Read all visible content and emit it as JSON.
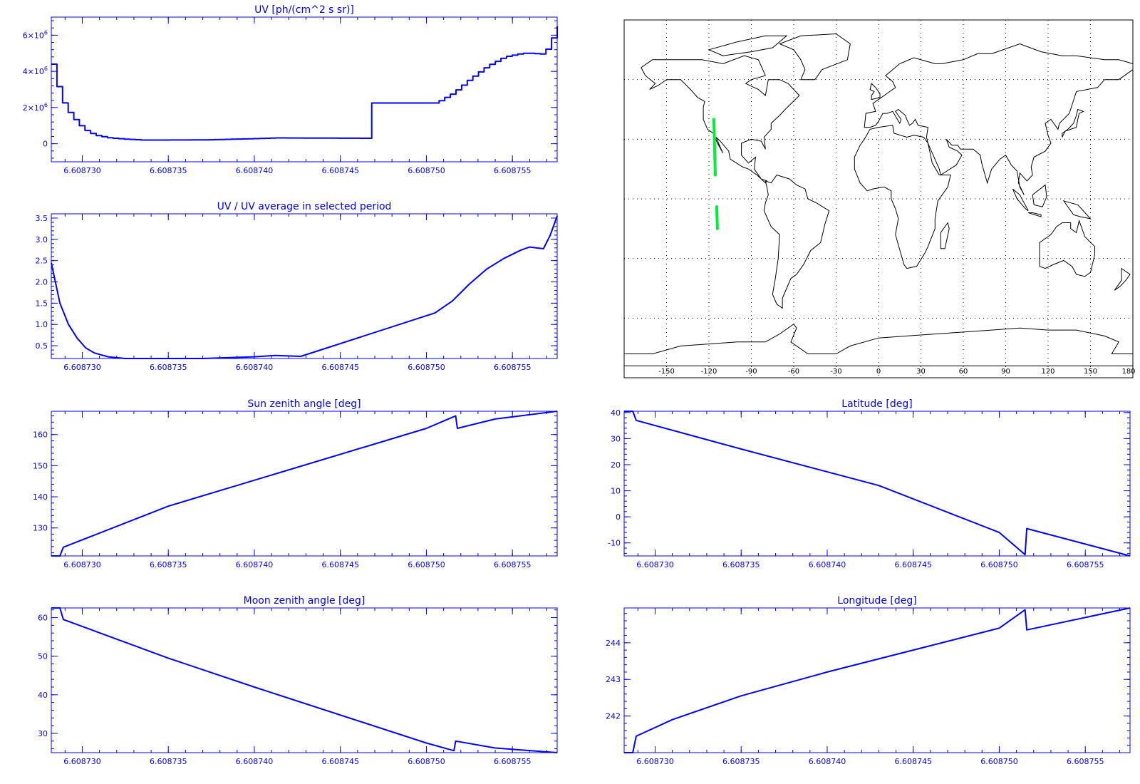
{
  "chart_data": [
    {
      "id": "uv",
      "type": "line",
      "title": "UV [ph/(cm^2 s sr)]",
      "xlim": [
        6.6087282,
        6.6087576
      ],
      "ylim": [
        -1000000,
        7000000
      ],
      "x_ticks": [
        6.60873,
        6.608735,
        6.60874,
        6.608745,
        6.60875,
        6.608755
      ],
      "x_tick_labels": [
        "6.608730",
        "6.608735",
        "6.608740",
        "6.608745",
        "6.608750",
        "6.608755"
      ],
      "y_ticks": [
        0,
        2000000,
        4000000,
        6000000
      ],
      "y_tick_labels": [
        "0",
        "2×10",
        "4×10",
        "6×10"
      ],
      "y_tick_exponent": "6",
      "step": true,
      "x": [
        6.6087282,
        6.6087287,
        6.6087292,
        6.6087297,
        6.6087302,
        6.6087307,
        6.6087315,
        6.6087325,
        6.6087335,
        6.608737,
        6.60874,
        6.6087412,
        6.6087465,
        6.6087465,
        6.6087505,
        6.6087515,
        6.6087525,
        6.6087535,
        6.6087545,
        6.6087555,
        6.608756,
        6.6087568,
        6.6087572,
        6.6087576
      ],
      "y": [
        4400000,
        2500000,
        1700000,
        1100000,
        700000,
        470000,
        320000,
        250000,
        200000,
        210000,
        280000,
        320000,
        300000,
        2250000,
        2250000,
        2800000,
        3600000,
        4300000,
        4800000,
        5000000,
        5000000,
        4950000,
        5700000,
        6500000
      ]
    },
    {
      "id": "uv-ratio",
      "type": "line",
      "title": "UV / UV average in selected period",
      "xlim": [
        6.6087282,
        6.6087576
      ],
      "ylim": [
        0.2,
        3.6
      ],
      "x_ticks": [
        6.60873,
        6.608735,
        6.60874,
        6.608745,
        6.60875,
        6.608755
      ],
      "x_tick_labels": [
        "6.608730",
        "6.608735",
        "6.608740",
        "6.608745",
        "6.608750",
        "6.608755"
      ],
      "y_ticks": [
        0.5,
        1.0,
        1.5,
        2.0,
        2.5,
        3.0,
        3.5
      ],
      "y_tick_labels": [
        "0.5",
        "1.0",
        "1.5",
        "2.0",
        "2.5",
        "3.0",
        "3.5"
      ],
      "x": [
        6.6087282,
        6.6087287,
        6.6087292,
        6.6087297,
        6.6087302,
        6.6087307,
        6.6087315,
        6.6087325,
        6.6087335,
        6.608737,
        6.60874,
        6.6087412,
        6.6087427,
        6.6087505,
        6.6087515,
        6.6087525,
        6.6087535,
        6.6087545,
        6.6087555,
        6.608756,
        6.6087568,
        6.6087572,
        6.6087576
      ],
      "y": [
        2.45,
        1.5,
        1.0,
        0.68,
        0.45,
        0.33,
        0.24,
        0.2,
        0.18,
        0.19,
        0.24,
        0.27,
        0.25,
        1.27,
        1.55,
        1.95,
        2.3,
        2.55,
        2.75,
        2.82,
        2.78,
        3.1,
        3.55
      ]
    },
    {
      "id": "sun-zenith",
      "type": "line",
      "title": "Sun zenith angle [deg]",
      "xlim": [
        6.6087282,
        6.6087576
      ],
      "ylim": [
        121,
        167.5
      ],
      "x_ticks": [
        6.60873,
        6.608735,
        6.60874,
        6.608745,
        6.60875,
        6.608755
      ],
      "x_tick_labels": [
        "6.608730",
        "6.608735",
        "6.608740",
        "6.608745",
        "6.608750",
        "6.608755"
      ],
      "y_ticks": [
        130,
        140,
        150,
        160
      ],
      "y_tick_labels": [
        "130",
        "140",
        "150",
        "160"
      ],
      "x": [
        6.6087282,
        6.6087287,
        6.6087289,
        6.608735,
        6.60875,
        6.6087517,
        6.6087518,
        6.608754,
        6.6087576
      ],
      "y": [
        121,
        121,
        123.8,
        137,
        162,
        166,
        162,
        165,
        167.5
      ]
    },
    {
      "id": "moon-zenith",
      "type": "line",
      "title": "Moon zenith angle [deg]",
      "xlim": [
        6.6087282,
        6.6087576
      ],
      "ylim": [
        25,
        62.5
      ],
      "x_ticks": [
        6.60873,
        6.608735,
        6.60874,
        6.608745,
        6.60875,
        6.608755
      ],
      "x_tick_labels": [
        "6.608730",
        "6.608735",
        "6.608740",
        "6.608745",
        "6.608750",
        "6.608755"
      ],
      "y_ticks": [
        30,
        40,
        50,
        60
      ],
      "y_tick_labels": [
        "30",
        "40",
        "50",
        "60"
      ],
      "x": [
        6.6087282,
        6.6087287,
        6.6087289,
        6.608735,
        6.60874,
        6.60875,
        6.6087516,
        6.6087517,
        6.608754,
        6.6087576
      ],
      "y": [
        62.5,
        62.5,
        59.5,
        49.5,
        42,
        27.5,
        25.5,
        28,
        26.2,
        25
      ]
    },
    {
      "id": "latitude",
      "type": "line",
      "title": "Latitude [deg]",
      "xlim": [
        6.6087282,
        6.6087576
      ],
      "ylim": [
        -15,
        40.5
      ],
      "x_ticks": [
        6.60873,
        6.608735,
        6.60874,
        6.608745,
        6.60875,
        6.608755
      ],
      "x_tick_labels": [
        "6.608730",
        "6.608735",
        "6.608740",
        "6.608745",
        "6.608750",
        "6.608755"
      ],
      "y_ticks": [
        -10,
        0,
        10,
        20,
        30,
        40
      ],
      "y_tick_labels": [
        "-10",
        "0",
        "10",
        "20",
        "30",
        "40"
      ],
      "x": [
        6.6087282,
        6.6087287,
        6.6087289,
        6.608735,
        6.608743,
        6.60875,
        6.6087515,
        6.6087516,
        6.6087576
      ],
      "y": [
        40.5,
        40.5,
        37,
        26,
        12,
        -6,
        -14.5,
        -4.5,
        -15
      ]
    },
    {
      "id": "longitude",
      "type": "line",
      "title": "Longitude [deg]",
      "xlim": [
        6.6087282,
        6.6087576
      ],
      "ylim": [
        241,
        244.95
      ],
      "x_ticks": [
        6.60873,
        6.608735,
        6.60874,
        6.608745,
        6.60875,
        6.608755
      ],
      "x_tick_labels": [
        "6.608730",
        "6.608735",
        "6.608740",
        "6.608745",
        "6.608750",
        "6.608755"
      ],
      "y_ticks": [
        242,
        243,
        244
      ],
      "y_tick_labels": [
        "242",
        "243",
        "244"
      ],
      "x": [
        6.6087282,
        6.6087287,
        6.6087289,
        6.608731,
        6.608735,
        6.60874,
        6.608745,
        6.60875,
        6.6087515,
        6.6087516,
        6.6087576
      ],
      "y": [
        241,
        241,
        241.45,
        241.9,
        242.55,
        243.2,
        243.8,
        244.4,
        244.9,
        244.35,
        244.95
      ]
    },
    {
      "id": "ground-track-map",
      "type": "map",
      "xlim": [
        -180,
        180
      ],
      "ylim": [
        -90,
        90
      ],
      "x_ticks": [
        -150,
        -120,
        -90,
        -60,
        -30,
        0,
        30,
        60,
        90,
        120,
        150,
        180
      ],
      "x_tick_labels": [
        "-150",
        "-120",
        "-90",
        "-60",
        "-30",
        "0",
        "30",
        "60",
        "90",
        "120",
        "150",
        "180"
      ],
      "y_grid": [
        -60,
        -30,
        0,
        30,
        60
      ],
      "grid": true,
      "track_color": "#00ee33",
      "track_segments": [
        {
          "lon": [
            -116.5,
            -115.5
          ],
          "lat": [
            40,
            12
          ]
        },
        {
          "lon": [
            -114.5,
            -114
          ],
          "lat": [
            -4,
            -15
          ]
        }
      ]
    }
  ]
}
